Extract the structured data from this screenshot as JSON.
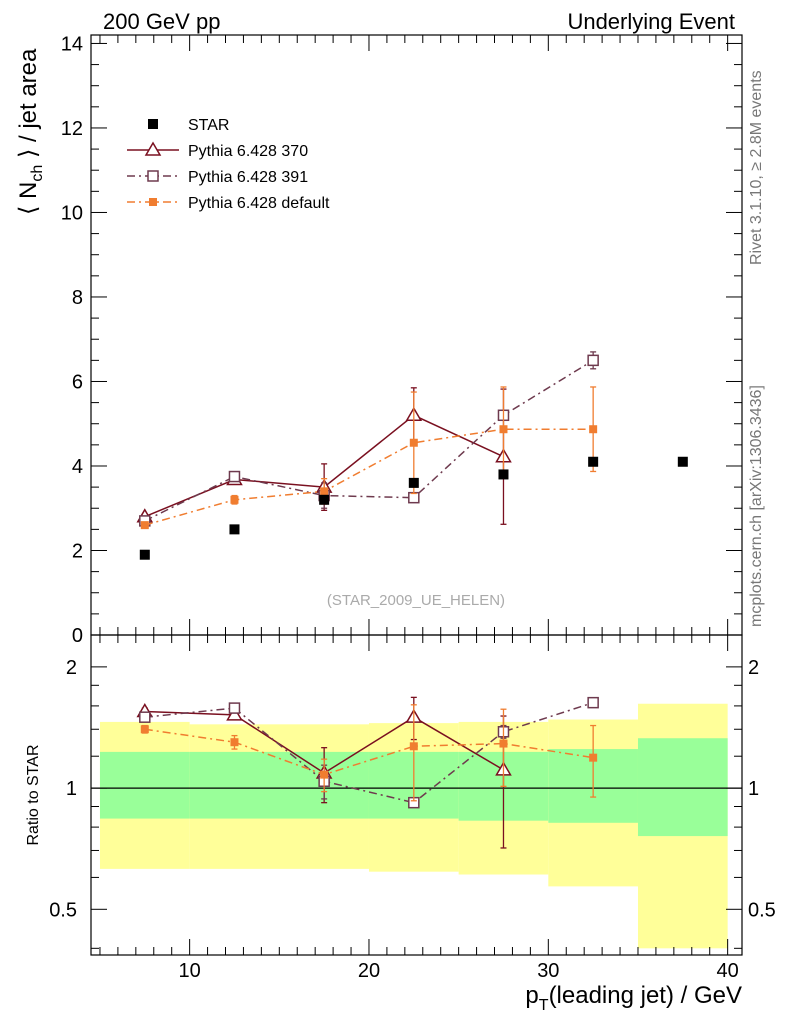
{
  "header": {
    "left": "200 GeV pp",
    "right": "Underlying Event"
  },
  "side_labels": {
    "rivet": "Rivet 3.1.10, ≥ 2.8M events",
    "mcplots": "mcplots.cern.ch [arXiv:1306.3436]"
  },
  "analysis_tag": "(STAR_2009_UE_HELEN)",
  "colors": {
    "star": "#000000",
    "p370": "#7a1020",
    "p391": "#6e3a4e",
    "pdefault": "#f07d30",
    "band_inner": "#99ff99",
    "band_outer": "#ffff99"
  },
  "chart_data": [
    {
      "type": "scatter",
      "ylabel_parts": {
        "pre": "⟨ N",
        "sub": "ch",
        "post": " ⟩ / jet area"
      },
      "xlim": [
        4.5,
        40.8
      ],
      "ylim": [
        0,
        14.2
      ],
      "yticks": [
        0,
        2,
        4,
        6,
        8,
        10,
        12,
        14
      ],
      "series": [
        {
          "name": "STAR",
          "x": [
            7.5,
            12.5,
            17.5,
            22.5,
            27.5,
            32.5,
            37.5
          ],
          "y": [
            1.9,
            2.5,
            3.2,
            3.6,
            3.8,
            4.1,
            4.1
          ]
        },
        {
          "name": "Pythia 6.428 370",
          "x": [
            7.5,
            12.5,
            17.5,
            22.5,
            27.5
          ],
          "y": [
            2.8,
            3.68,
            3.5,
            5.2,
            4.22
          ],
          "err": [
            0.05,
            0.08,
            0.55,
            0.65,
            1.6
          ]
        },
        {
          "name": "Pythia 6.428 391",
          "x": [
            7.5,
            12.5,
            17.5,
            22.5,
            27.5,
            32.5
          ],
          "y": [
            2.7,
            3.75,
            3.3,
            3.25,
            5.2,
            6.5
          ],
          "err": [
            0.05,
            0.1,
            0.3,
            0.05,
            0.1,
            0.2
          ]
        },
        {
          "name": "Pythia 6.428 default",
          "x": [
            7.5,
            12.5,
            17.5,
            22.5,
            27.5,
            32.5
          ],
          "y": [
            2.6,
            3.2,
            3.4,
            4.55,
            4.87,
            4.87
          ],
          "err": [
            0.05,
            0.1,
            0.3,
            1.2,
            1.0,
            1.0
          ]
        }
      ]
    },
    {
      "type": "scatter",
      "ylabel": "Ratio to STAR",
      "xlabel_parts": {
        "pre": "p",
        "sub": "T",
        "post": "(leading jet) / GeV"
      },
      "xlim": [
        4.5,
        40.8
      ],
      "xticks": [
        10,
        20,
        30,
        40
      ],
      "ylim": [
        0.385,
        2.4
      ],
      "yscale": "log",
      "yticks": [
        0.5,
        1,
        2
      ],
      "reference": 1,
      "bands": [
        {
          "x0": 5,
          "x1": 10,
          "inner": [
            0.84,
            1.23
          ],
          "outer": [
            0.63,
            1.46
          ]
        },
        {
          "x0": 10,
          "x1": 20,
          "inner": [
            0.84,
            1.23
          ],
          "outer": [
            0.63,
            1.44
          ]
        },
        {
          "x0": 20,
          "x1": 25,
          "inner": [
            0.84,
            1.23
          ],
          "outer": [
            0.62,
            1.45
          ]
        },
        {
          "x0": 25,
          "x1": 30,
          "inner": [
            0.83,
            1.23
          ],
          "outer": [
            0.61,
            1.46
          ]
        },
        {
          "x0": 30,
          "x1": 35,
          "inner": [
            0.82,
            1.25
          ],
          "outer": [
            0.57,
            1.48
          ]
        },
        {
          "x0": 35,
          "x1": 40,
          "inner": [
            0.76,
            1.33
          ],
          "outer": [
            0.4,
            1.62
          ]
        }
      ],
      "series": [
        {
          "name": "Pythia 6.428 370",
          "x": [
            7.5,
            12.5,
            17.5,
            22.5,
            27.5
          ],
          "y": [
            1.55,
            1.52,
            1.09,
            1.5,
            1.11
          ],
          "err": [
            0.03,
            0.04,
            0.17,
            0.18,
            0.4
          ]
        },
        {
          "name": "Pythia 6.428 391",
          "x": [
            7.5,
            12.5,
            17.5,
            22.5,
            27.5,
            32.5
          ],
          "y": [
            1.5,
            1.58,
            1.04,
            0.92,
            1.38,
            1.63
          ],
          "err": [
            0.03,
            0.04,
            0.1,
            0.02,
            0.05,
            0.04
          ]
        },
        {
          "name": "Pythia 6.428 default",
          "x": [
            7.5,
            12.5,
            17.5,
            22.5,
            27.5,
            32.5
          ],
          "y": [
            1.4,
            1.3,
            1.08,
            1.27,
            1.29,
            1.19
          ],
          "err": [
            0.03,
            0.05,
            0.1,
            0.34,
            0.28,
            0.24
          ]
        }
      ]
    }
  ]
}
